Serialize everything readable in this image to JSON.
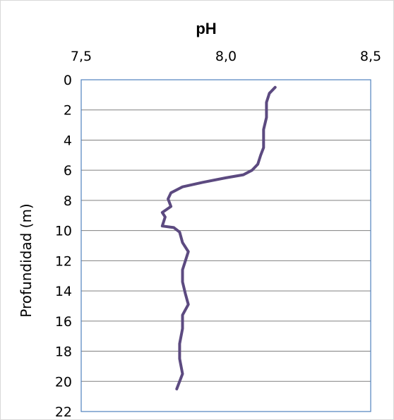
{
  "chart_data": {
    "type": "line",
    "title": "pH",
    "xlabel": "",
    "ylabel": "Profundidad (m)",
    "x_axis_position": "top",
    "y_axis_inverted": true,
    "xlim": [
      7.5,
      8.5
    ],
    "ylim": [
      0,
      22
    ],
    "x_ticks": [
      7.5,
      8.0,
      8.5
    ],
    "x_tick_labels": [
      "7,5",
      "8,0",
      "8,5"
    ],
    "y_ticks": [
      0,
      2,
      4,
      6,
      8,
      10,
      12,
      14,
      16,
      18,
      20,
      22
    ],
    "y_tick_labels": [
      "0",
      "2",
      "4",
      "6",
      "8",
      "10",
      "12",
      "14",
      "16",
      "18",
      "20",
      "22"
    ],
    "grid": {
      "horizontal": true,
      "vertical": false
    },
    "legend": "none",
    "series": [
      {
        "color": "#5c4a80",
        "points": [
          {
            "x": 8.17,
            "y": 0.5
          },
          {
            "x": 8.15,
            "y": 0.9
          },
          {
            "x": 8.14,
            "y": 1.5
          },
          {
            "x": 8.14,
            "y": 2.5
          },
          {
            "x": 8.13,
            "y": 3.3
          },
          {
            "x": 8.13,
            "y": 4.5
          },
          {
            "x": 8.12,
            "y": 5.0
          },
          {
            "x": 8.11,
            "y": 5.6
          },
          {
            "x": 8.09,
            "y": 6.0
          },
          {
            "x": 8.06,
            "y": 6.3
          },
          {
            "x": 8.0,
            "y": 6.5
          },
          {
            "x": 7.92,
            "y": 6.8
          },
          {
            "x": 7.85,
            "y": 7.1
          },
          {
            "x": 7.81,
            "y": 7.5
          },
          {
            "x": 7.8,
            "y": 7.9
          },
          {
            "x": 7.81,
            "y": 8.4
          },
          {
            "x": 7.78,
            "y": 8.8
          },
          {
            "x": 7.79,
            "y": 9.1
          },
          {
            "x": 7.78,
            "y": 9.7
          },
          {
            "x": 7.82,
            "y": 9.8
          },
          {
            "x": 7.84,
            "y": 10.1
          },
          {
            "x": 7.85,
            "y": 10.8
          },
          {
            "x": 7.87,
            "y": 11.4
          },
          {
            "x": 7.86,
            "y": 12.0
          },
          {
            "x": 7.85,
            "y": 12.6
          },
          {
            "x": 7.85,
            "y": 13.4
          },
          {
            "x": 7.86,
            "y": 14.2
          },
          {
            "x": 7.87,
            "y": 14.9
          },
          {
            "x": 7.85,
            "y": 15.6
          },
          {
            "x": 7.85,
            "y": 16.5
          },
          {
            "x": 7.84,
            "y": 17.5
          },
          {
            "x": 7.84,
            "y": 18.5
          },
          {
            "x": 7.85,
            "y": 19.5
          },
          {
            "x": 7.84,
            "y": 20.0
          },
          {
            "x": 7.83,
            "y": 20.5
          }
        ]
      }
    ]
  }
}
